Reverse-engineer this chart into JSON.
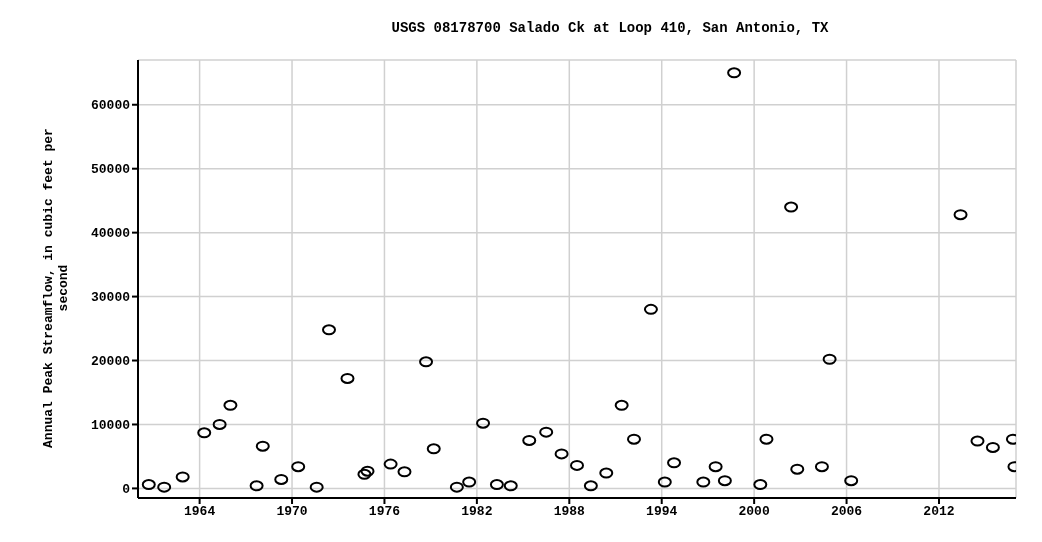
{
  "chart_data": {
    "type": "scatter",
    "title": "USGS 08178700 Salado Ck at Loop 410, San Antonio, TX",
    "ylabel": "Annual Peak Streamflow, in cubic feet per second",
    "x": [
      1960.7,
      1961.7,
      1962.9,
      1964.3,
      1965.3,
      1966.0,
      1967.7,
      1968.1,
      1969.3,
      1970.4,
      1971.6,
      1972.4,
      1973.6,
      1974.7,
      1974.9,
      1976.4,
      1977.3,
      1978.7,
      1979.2,
      1980.7,
      1981.5,
      1982.4,
      1983.3,
      1984.2,
      1985.4,
      1986.5,
      1987.5,
      1988.5,
      1989.4,
      1990.4,
      1991.4,
      1992.2,
      1993.3,
      1994.2,
      1994.8,
      1996.7,
      1997.5,
      1998.1,
      1998.7,
      2000.4,
      2000.8,
      2002.4,
      2002.8,
      2004.4,
      2004.9,
      2006.3,
      2013.4,
      2014.5,
      2015.5,
      2016.8,
      2016.9
    ],
    "series": [
      {
        "color": "#000000",
        "values": [
          600,
          200,
          1800,
          8700,
          10000,
          13000,
          400,
          6600,
          1400,
          3400,
          200,
          24800,
          17200,
          2200,
          2700,
          3800,
          2600,
          19800,
          6200,
          200,
          1000,
          10200,
          600,
          400,
          7500,
          8800,
          5400,
          3600,
          400,
          2400,
          13000,
          7700,
          28000,
          1000,
          4000,
          1000,
          3400,
          1200,
          65000,
          600,
          7700,
          44000,
          3000,
          3400,
          20200,
          1200,
          42800,
          7400,
          6400,
          7700,
          3400
        ]
      }
    ],
    "xlim": [
      1960,
      2017
    ],
    "xticks": [
      1964,
      1970,
      1976,
      1982,
      1988,
      1994,
      2000,
      2006,
      2012
    ],
    "ylim": [
      -1500,
      67000
    ],
    "yticks": [
      0,
      10000,
      20000,
      30000,
      40000,
      50000,
      60000
    ],
    "grid": true,
    "marker": "circle",
    "legend": false
  }
}
